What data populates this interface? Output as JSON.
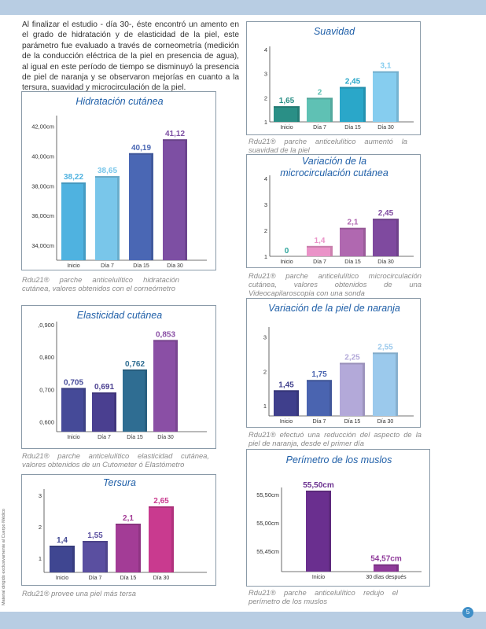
{
  "intro_text": "Al finalizar el estudio - día 30-, éste encontró un amento en el grado de hidratación y de elasticidad de la piel, este parámetro fue evaluado a través de corneometría (medición de la conducción eléctrica de la piel en presencia de agua), al igual en este período de tiempo se disminuyó la presencia de piel de naranja y se observaron mejorías en cuanto a la tersura, suavidad y microcirculación de la piel.",
  "side_note": "Material dirigido exclusivamente al Cuerpo Médico",
  "page_number": "5",
  "colors": {
    "teal": "#2a9b8f",
    "lightblue": "#7fc3e6",
    "blue": "#4a72b8",
    "purple": "#7a4fa0",
    "magenta": "#b0368a",
    "pink": "#e58bc4",
    "lilac": "#b3a6d6",
    "navy": "#3c3f8f",
    "title": "#1f5fa8"
  },
  "chart_data": [
    {
      "id": "hidratacion",
      "type": "bar",
      "title": "Hidratación cutánea",
      "categories": [
        "Inicio",
        "Día 7",
        "Día 15",
        "Día 30"
      ],
      "values": [
        38.22,
        38.65,
        40.19,
        41.12
      ],
      "value_labels": [
        "38,22",
        "38,65",
        "40,19",
        "41,12"
      ],
      "ytick_values": [
        34,
        36,
        38,
        40,
        42
      ],
      "ytick_labels": [
        "34,00cm",
        "36,00cm",
        "38,00cm",
        "40,00cm",
        "42,00cm"
      ],
      "ylim": [
        33,
        42.5
      ],
      "bar_colors": [
        "#4fb2e0",
        "#79c6ea",
        "#4a67b4",
        "#7d4fa3"
      ],
      "label_colors": [
        "#4fb2e0",
        "#79c6ea",
        "#4a67b4",
        "#7d4fa3"
      ],
      "caption": "Rdu21® parche anticelulítico hidratación cutánea, valores obtenidos con el corneómetro"
    },
    {
      "id": "suavidad",
      "type": "bar",
      "title": "Suavidad",
      "categories": [
        "Inicio",
        "Día 7",
        "Día 15",
        "Día 30"
      ],
      "values": [
        1.65,
        2,
        2.45,
        3.1
      ],
      "value_labels": [
        "1,65",
        "2",
        "2,45",
        "3,1"
      ],
      "ytick_values": [
        1,
        2,
        3,
        4
      ],
      "ytick_labels": [
        "1",
        "2",
        "3",
        "4"
      ],
      "ylim": [
        1,
        4
      ],
      "bar_colors": [
        "#2a8f86",
        "#5fc1b4",
        "#2aa7c9",
        "#86cdef"
      ],
      "label_colors": [
        "#2a8f86",
        "#5fc1b4",
        "#2aa7c9",
        "#86cdef"
      ],
      "caption": "Rdu21® parche anticelulítico aumentó la suavidad de la piel"
    },
    {
      "id": "microcirculacion",
      "type": "bar",
      "title": "Variación de la microcirculación cutánea",
      "title_lines": [
        "Variación de la",
        "microcirculación cutánea"
      ],
      "categories": [
        "Inicio",
        "Día 7",
        "Día 15",
        "Día 30"
      ],
      "values": [
        0,
        1.4,
        2.1,
        2.45
      ],
      "value_labels": [
        "0",
        "1,4",
        "2,1",
        "2,45"
      ],
      "ytick_values": [
        1,
        2,
        3,
        4
      ],
      "ytick_labels": [
        "1",
        "2",
        "3",
        "4"
      ],
      "ylim": [
        1,
        4
      ],
      "bar_colors": [
        "#2aa39a",
        "#ea93c8",
        "#b068b0",
        "#7f4a9f"
      ],
      "label_colors": [
        "#2aa39a",
        "#ea93c8",
        "#b068b0",
        "#7f4a9f"
      ],
      "caption": "Rdu21® parche anticelulítico microcirculación cutánea, valores obtenidos de una Videocapilaroscopia con una sonda"
    },
    {
      "id": "elasticidad",
      "type": "bar",
      "title": "Elasticidad cutánea",
      "categories": [
        "Inicio",
        "Día 7",
        "Día 15",
        "Día 30"
      ],
      "values": [
        0.705,
        0.691,
        0.762,
        0.853
      ],
      "value_labels": [
        "0,705",
        "0,691",
        "0,762",
        "0,853"
      ],
      "ytick_values": [
        0.6,
        0.7,
        0.8,
        0.9
      ],
      "ytick_labels": [
        "0,600",
        "0,700",
        "0,800",
        ",0,900"
      ],
      "ylim": [
        0.57,
        0.9
      ],
      "bar_colors": [
        "#454a98",
        "#4a3f90",
        "#2f6d92",
        "#8a4fa5"
      ],
      "label_colors": [
        "#454a98",
        "#4a3f90",
        "#2f6d92",
        "#8a4fa5"
      ],
      "caption": "Rdu21® parche anticelulítico elasticidad cutánea, valores obtenidos de un Cutometer ó Elastómetro"
    },
    {
      "id": "piel_naranja",
      "type": "bar",
      "title": "Variación de la piel de naranja",
      "categories": [
        "Inicio",
        "Día 7",
        "Día 15",
        "Día 30"
      ],
      "values": [
        1.45,
        1.75,
        2.25,
        2.55
      ],
      "value_labels": [
        "1,45",
        "1,75",
        "2,25",
        "2,55"
      ],
      "ytick_values": [
        1,
        2,
        3
      ],
      "ytick_labels": [
        "1",
        "2",
        "3"
      ],
      "ylim": [
        0.7,
        3.2
      ],
      "bar_colors": [
        "#3f3f8c",
        "#4a64b0",
        "#b3a9d9",
        "#9bc9ec"
      ],
      "label_colors": [
        "#3f3f8c",
        "#4a64b0",
        "#b3a9d9",
        "#9bc9ec"
      ],
      "caption": "Rdu21® efectuó una reducción del aspecto de la piel de naranja, desde el primer día"
    },
    {
      "id": "tersura",
      "type": "bar",
      "title": "Tersura",
      "categories": [
        "Inicio",
        "Día 7",
        "Día 15",
        "Día 30"
      ],
      "values": [
        1.4,
        1.55,
        2.1,
        2.65
      ],
      "value_labels": [
        "1,4",
        "1,55",
        "2,1",
        "2,65"
      ],
      "ytick_values": [
        1,
        2,
        3
      ],
      "ytick_labels": [
        "1",
        "2",
        "3"
      ],
      "ylim": [
        0.55,
        3.1
      ],
      "bar_colors": [
        "#3f4691",
        "#5a4fa0",
        "#a33c96",
        "#c93a8f"
      ],
      "label_colors": [
        "#3f4691",
        "#5a4fa0",
        "#a33c96",
        "#c93a8f"
      ],
      "caption": "Rdu21® provee una piel más tersa"
    },
    {
      "id": "perimetro",
      "type": "bar",
      "title": "Perímetro de los muslos",
      "categories": [
        "Inicio",
        "30 días después"
      ],
      "values": [
        55.5,
        54.57
      ],
      "value_labels": [
        "55,50cm",
        "54,57cm"
      ],
      "ytick_values": [
        0,
        1,
        2
      ],
      "ytick_labels": [
        "55,45cm",
        "55,00cm",
        "55,50cm"
      ],
      "bar_heights_fraction": [
        1,
        0.09
      ],
      "bar_colors": [
        "#6a2f8f",
        "#8f3a9a"
      ],
      "label_colors": [
        "#6a2f8f",
        "#8f3a9a"
      ],
      "caption": "Rdu21® parche anticelulítico redujo el perímetro de los muslos"
    }
  ]
}
